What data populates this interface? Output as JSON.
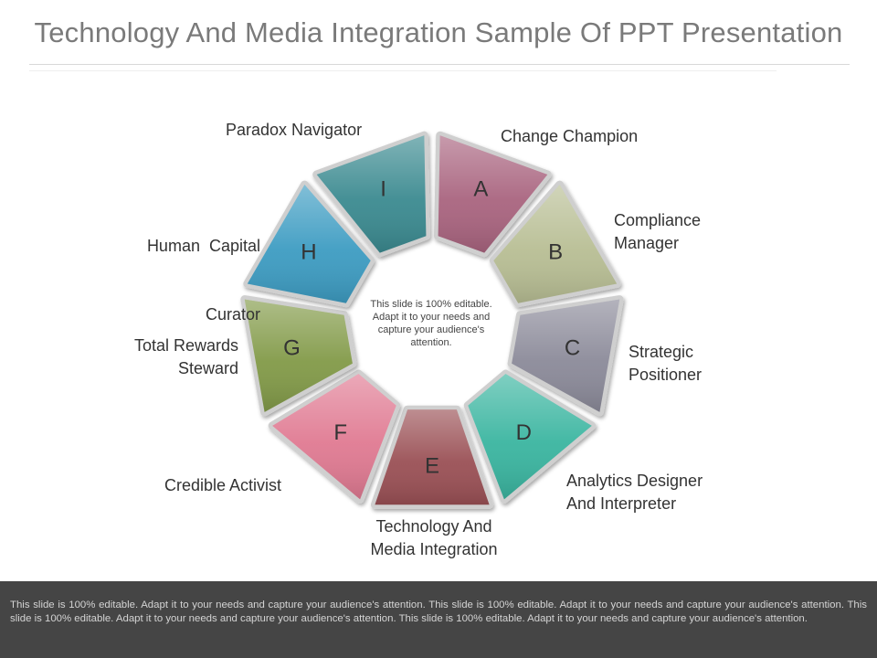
{
  "title": "Technology And Media Integration Sample Of PPT Presentation",
  "center_text": "This slide is 100% editable. Adapt it to your needs and capture your audience's attention.",
  "segments": [
    {
      "letter": "A",
      "label_lines": [
        "Change Champion"
      ],
      "color": "#a9647f"
    },
    {
      "letter": "B",
      "label_lines": [
        "Compliance",
        "Manager"
      ],
      "color": "#b8be94"
    },
    {
      "letter": "C",
      "label_lines": [
        "Strategic",
        "Positioner"
      ],
      "color": "#8b8a99"
    },
    {
      "letter": "D",
      "label_lines": [
        "Analytics Designer",
        "And Interpreter"
      ],
      "color": "#3ab5a0"
    },
    {
      "letter": "E",
      "label_lines": [
        "Technology And",
        "Media Integration"
      ],
      "color": "#9a5055"
    },
    {
      "letter": "F",
      "label_lines": [
        "Credible Activist"
      ],
      "color": "#e07a92"
    },
    {
      "letter": "G",
      "label_lines": [
        "Total Rewards",
        "Steward"
      ],
      "color": "#829a48"
    },
    {
      "letter": "H",
      "label_lines": [
        "Human  Capital",
        "Curator"
      ],
      "color": "#3d9cc2"
    },
    {
      "letter": "I",
      "label_lines": [
        "Paradox Navigator"
      ],
      "color": "#3b8a90"
    }
  ],
  "footer_text": "This slide is 100% editable. Adapt it to your needs and capture your audience's attention. This slide is 100% editable. Adapt it to your needs and capture your audience's attention. This slide is 100% editable. Adapt it to your needs and capture your audience's attention. This slide is 100% editable. Adapt it to your needs and capture your audience's attention."
}
